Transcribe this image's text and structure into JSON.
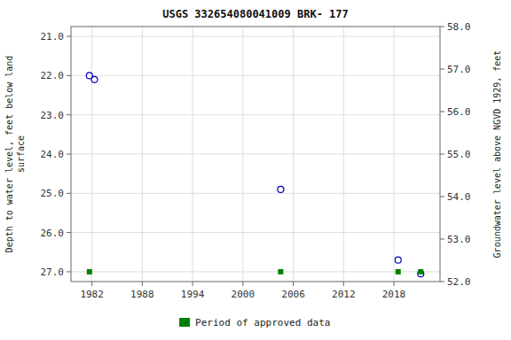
{
  "chart_data": {
    "type": "scatter",
    "title": "USGS 332654080041009 BRK- 177",
    "ylabel": "Depth to water level, feet below land\nsurface",
    "y2label": "Groundwater level above NGVD 1929, feet",
    "xlim": [
      1979.5,
      2023.5
    ],
    "xticks": [
      1982,
      1988,
      1994,
      2000,
      2006,
      2012,
      2018
    ],
    "ylim": [
      27.25,
      20.75
    ],
    "yticks": [
      {
        "value": 21.0,
        "label": "21.0"
      },
      {
        "value": 22.0,
        "label": "22.0"
      },
      {
        "value": 23.0,
        "label": "23.0"
      },
      {
        "value": 24.0,
        "label": "24.0"
      },
      {
        "value": 25.0,
        "label": "25.0"
      },
      {
        "value": 26.0,
        "label": "26.0"
      },
      {
        "value": 27.0,
        "label": "27.0"
      }
    ],
    "y2lim": [
      52.0,
      58.0
    ],
    "y2ticks": [
      {
        "value": 58.0,
        "label": "58.0"
      },
      {
        "value": 57.0,
        "label": "57.0"
      },
      {
        "value": 56.0,
        "label": "56.0"
      },
      {
        "value": 55.0,
        "label": "55.0"
      },
      {
        "value": 54.0,
        "label": "54.0"
      },
      {
        "value": 53.0,
        "label": "53.0"
      },
      {
        "value": 52.0,
        "label": "52.0"
      }
    ],
    "grid": true,
    "legend": "bottom",
    "series": [
      {
        "x": [
          1981.7,
          1982.3,
          2004.5,
          2018.5,
          2021.2
        ],
        "values": [
          22.0,
          22.1,
          24.9,
          26.7,
          27.05
        ],
        "color": "#0000bb",
        "marker": "circle"
      },
      {
        "name": "Period of approved data",
        "x": [
          1981.7,
          2004.5,
          2018.5,
          2021.2
        ],
        "values": [
          27.0,
          27.0,
          27.0,
          27.0
        ],
        "color": "#008000",
        "marker": "square"
      }
    ]
  }
}
